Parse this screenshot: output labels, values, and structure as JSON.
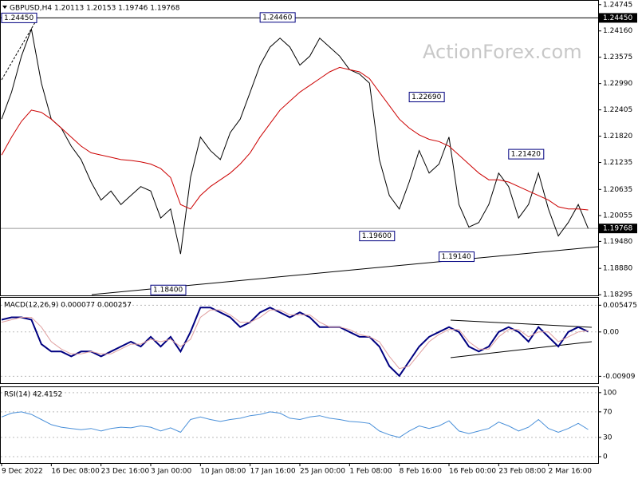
{
  "chart_data": [
    {
      "type": "line",
      "title": "GBPUSD,H4  1.20113 1.20153 1.19746 1.19768",
      "watermark": "ActionForex.com",
      "xlim": [
        0,
        60
      ],
      "xticks": [
        {
          "value": 0,
          "label": "9 Dec 2022"
        },
        {
          "value": 5,
          "label": "16 Dec 08:00"
        },
        {
          "value": 10,
          "label": "23 Dec 16:00"
        },
        {
          "value": 15,
          "label": "3 Jan 00:00"
        },
        {
          "value": 20,
          "label": "10 Jan 08:00"
        },
        {
          "value": 25,
          "label": "17 Jan 16:00"
        },
        {
          "value": 30,
          "label": "25 Jan 00:00"
        },
        {
          "value": 35,
          "label": "1 Feb 08:00"
        },
        {
          "value": 40,
          "label": "8 Feb 16:00"
        },
        {
          "value": 45,
          "label": "16 Feb 00:00"
        },
        {
          "value": 50,
          "label": "23 Feb 08:00"
        },
        {
          "value": 55,
          "label": "2 Mar 16:00"
        }
      ],
      "ylim": [
        1.1828,
        1.2483
      ],
      "yticks": [
        1.24745,
        {
          "value": 1.2416,
          "label": "1.24160"
        },
        1.23575,
        {
          "value": 1.2299,
          "label": "1.22990"
        },
        1.22405,
        {
          "value": 1.2182,
          "label": "1.21820"
        },
        1.21235,
        1.20635,
        1.20055,
        {
          "value": 1.1948,
          "label": "1.19480"
        },
        {
          "value": 1.1888,
          "label": "1.18880"
        },
        1.18295
      ],
      "series": [
        {
          "name": "GBPUSD",
          "color": "#000000",
          "values": [
            1.222,
            1.228,
            1.236,
            1.242,
            1.23,
            1.222,
            1.22,
            1.216,
            1.213,
            1.208,
            1.204,
            1.206,
            1.203,
            1.205,
            1.207,
            1.206,
            1.2,
            1.202,
            1.192,
            1.209,
            1.218,
            1.215,
            1.213,
            1.219,
            1.222,
            1.228,
            1.234,
            1.238,
            1.24,
            1.238,
            1.234,
            1.236,
            1.24,
            1.238,
            1.236,
            1.233,
            1.232,
            1.23,
            1.213,
            1.205,
            1.202,
            1.208,
            1.215,
            1.21,
            1.212,
            1.218,
            1.203,
            1.198,
            1.199,
            1.203,
            1.21,
            1.207,
            1.2,
            1.203,
            1.21,
            1.202,
            1.196,
            1.199,
            1.203,
            1.19768
          ]
        },
        {
          "name": "MA",
          "color": "#cc0000",
          "values": [
            1.214,
            1.218,
            1.2215,
            1.224,
            1.2235,
            1.222,
            1.22,
            1.218,
            1.216,
            1.2145,
            1.214,
            1.2135,
            1.213,
            1.2128,
            1.2125,
            1.212,
            1.211,
            1.209,
            1.203,
            1.202,
            1.205,
            1.207,
            1.2085,
            1.21,
            1.212,
            1.2145,
            1.218,
            1.221,
            1.224,
            1.226,
            1.228,
            1.2295,
            1.231,
            1.2325,
            1.2335,
            1.233,
            1.2325,
            1.231,
            1.228,
            1.225,
            1.222,
            1.22,
            1.2185,
            1.2175,
            1.217,
            1.216,
            1.214,
            1.212,
            1.21,
            1.2085,
            1.2085,
            1.208,
            1.207,
            1.206,
            1.205,
            1.204,
            1.2025,
            1.202,
            1.202,
            1.2018
          ]
        }
      ],
      "annotations": [
        {
          "index": 0,
          "value": 1.2445,
          "label": "1.24450"
        },
        {
          "index": 26,
          "value": 1.2446,
          "label": "1.24460"
        },
        {
          "index": 41,
          "value": 1.2269,
          "label": "1.22690"
        },
        {
          "index": 51,
          "value": 1.2142,
          "label": "1.21420"
        },
        {
          "index": 36,
          "value": 1.196,
          "label": "1.19600"
        },
        {
          "index": 44,
          "value": 1.1914,
          "label": "1.19140"
        },
        {
          "index": 15,
          "value": 1.184,
          "label": "1.18400"
        }
      ],
      "resistance": {
        "value": 1.2445,
        "label": "1.24450"
      },
      "last_price": {
        "value": 1.19768,
        "label": "1.19768"
      }
    },
    {
      "type": "line",
      "title": "MACD(12,26,9) 0.000077 0.000257",
      "xlim": [
        0,
        60
      ],
      "ylim": [
        -0.0105,
        0.007
      ],
      "yticks": [
        0.005475,
        {
          "value": 0,
          "label": "0.00"
        },
        -0.00909
      ],
      "series": [
        {
          "name": "MACD",
          "color": "#000080",
          "values": [
            0.0025,
            0.003,
            0.003,
            0.0025,
            -0.0025,
            -0.004,
            -0.004,
            -0.005,
            -0.004,
            -0.004,
            -0.005,
            -0.004,
            -0.003,
            -0.002,
            -0.003,
            -0.001,
            -0.003,
            -0.001,
            -0.004,
            0,
            0.005,
            0.005,
            0.004,
            0.003,
            0.001,
            0.002,
            0.004,
            0.005,
            0.004,
            0.003,
            0.004,
            0.003,
            0.001,
            0.001,
            0.001,
            0,
            -0.001,
            -0.001,
            -0.003,
            -0.007,
            -0.009,
            -0.006,
            -0.003,
            -0.001,
            0,
            0.001,
            0,
            -0.003,
            -0.004,
            -0.003,
            0,
            0.001,
            0,
            -0.002,
            0.001,
            -0.001,
            -0.003,
            0,
            0.001,
            7.7e-05
          ]
        },
        {
          "name": "Signal",
          "color": "#e0a0a0",
          "values": [
            0.002,
            0.0025,
            0.003,
            0.003,
            0.001,
            -0.002,
            -0.0035,
            -0.0045,
            -0.0045,
            -0.004,
            -0.0045,
            -0.0045,
            -0.0035,
            -0.0025,
            -0.0025,
            -0.0015,
            -0.002,
            -0.0015,
            -0.003,
            -0.0015,
            0.003,
            0.0045,
            0.0045,
            0.0035,
            0.002,
            0.002,
            0.003,
            0.0045,
            0.0045,
            0.0035,
            0.0035,
            0.0035,
            0.002,
            0.001,
            0.001,
            0.0005,
            -0.0005,
            -0.001,
            -0.002,
            -0.005,
            -0.0075,
            -0.007,
            -0.0045,
            -0.002,
            -0.0005,
            0.0005,
            0.0005,
            -0.002,
            -0.0035,
            -0.0035,
            -0.001,
            0.0005,
            0.0005,
            -0.001,
            0,
            0,
            -0.002,
            -0.001,
            0,
            0.000257
          ]
        }
      ]
    },
    {
      "type": "line",
      "title": "RSI(14) 42.4152",
      "xlim": [
        0,
        60
      ],
      "ylim": [
        -10,
        108.5
      ],
      "yticks": [
        100,
        70,
        30,
        0
      ],
      "series": [
        {
          "name": "RSI",
          "color": "#4a90d9",
          "values": [
            62,
            68,
            70,
            66,
            58,
            50,
            46,
            44,
            42,
            44,
            40,
            44,
            46,
            45,
            48,
            46,
            40,
            45,
            38,
            58,
            62,
            58,
            55,
            58,
            60,
            64,
            66,
            70,
            68,
            60,
            58,
            62,
            64,
            60,
            58,
            55,
            54,
            52,
            40,
            34,
            30,
            40,
            48,
            44,
            48,
            56,
            40,
            36,
            40,
            44,
            54,
            48,
            40,
            46,
            58,
            44,
            38,
            44,
            52,
            42.4152
          ]
        }
      ]
    }
  ]
}
